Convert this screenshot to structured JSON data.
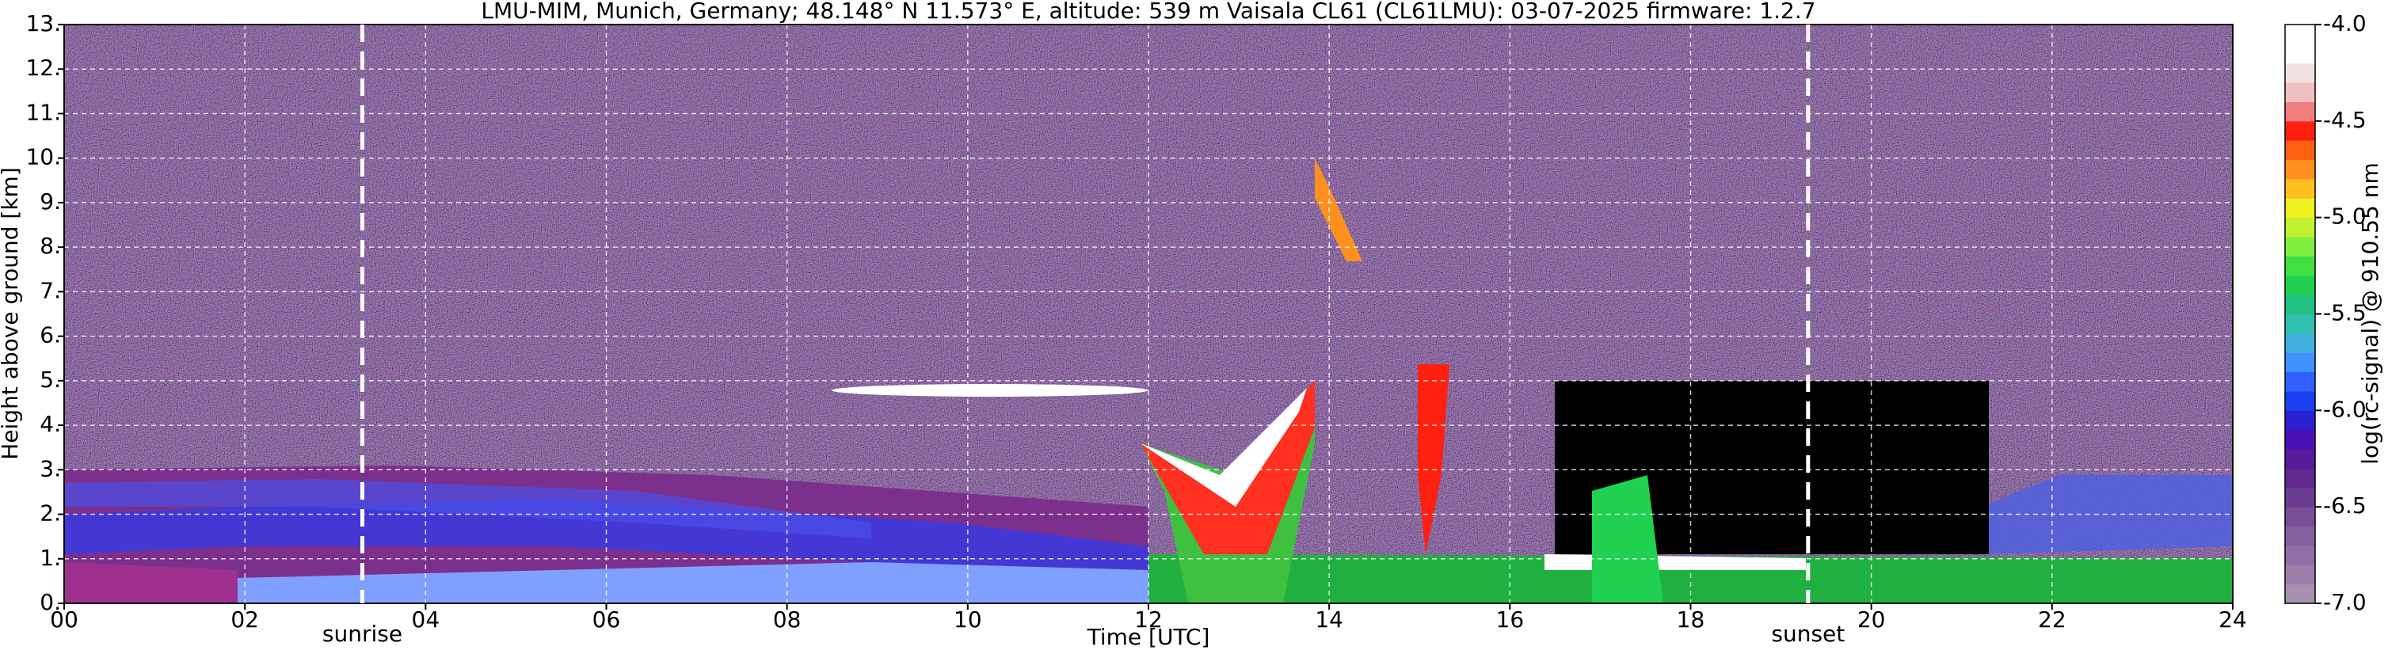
{
  "chart_data": {
    "type": "heatmap",
    "title": "LMU-MIM, Munich, Germany; 48.148° N 11.573° E, altitude: 539 m    Vaisala CL61 (CL61LMU): 03-07-2025    firmware: 1.2.7",
    "x_label": "Time [UTC]",
    "y_label": "Height above ground [km]",
    "xlim": [
      0,
      24
    ],
    "xticks": [
      {
        "value": 0,
        "label": "00"
      },
      {
        "value": 2,
        "label": "02"
      },
      {
        "value": 4,
        "label": "04"
      },
      {
        "value": 6,
        "label": "06"
      },
      {
        "value": 8,
        "label": "08"
      },
      10,
      12,
      14,
      16,
      18,
      20,
      22,
      24
    ],
    "ylim": [
      0,
      13
    ],
    "yticks": [
      {
        "value": 0,
        "label": "0."
      },
      {
        "value": 1,
        "label": "1."
      },
      {
        "value": 2,
        "label": "2."
      },
      {
        "value": 3,
        "label": "3."
      },
      {
        "value": 4,
        "label": "4."
      },
      {
        "value": 5,
        "label": "5."
      },
      {
        "value": 6,
        "label": "6."
      },
      {
        "value": 7,
        "label": "7."
      },
      {
        "value": 8,
        "label": "8."
      },
      {
        "value": 9,
        "label": "9."
      },
      {
        "value": 10,
        "label": "10."
      },
      {
        "value": 11,
        "label": "11."
      },
      {
        "value": 12,
        "label": "12."
      },
      {
        "value": 13,
        "label": "13."
      }
    ],
    "grid": true,
    "events": [
      {
        "label": "sunrise",
        "x": 3.3
      },
      {
        "label": "sunset",
        "x": 19.3
      }
    ],
    "colorbar": {
      "label": "log(rc-signal) @ 910.55 nm",
      "lim": [
        -7.0,
        -4.0
      ],
      "ticks": [
        {
          "value": -7,
          "label": "-7.0"
        },
        -6.5,
        {
          "value": -6,
          "label": "-6.0"
        },
        -5.5,
        {
          "value": -5,
          "label": "-5.0"
        },
        -4.5,
        {
          "value": -4,
          "label": "-4.0"
        }
      ],
      "colors": [
        "#a890b0",
        "#9c7eaa",
        "#9070a4",
        "#84609e",
        "#784e98",
        "#6c3c92",
        "#60288c",
        "#5a1a9c",
        "#4a10b4",
        "#2a20d0",
        "#1a40f0",
        "#3060ff",
        "#4090ff",
        "#40b0e0",
        "#30c0b0",
        "#20c080",
        "#20d050",
        "#40e040",
        "#80f040",
        "#c0f030",
        "#f0f020",
        "#ffc020",
        "#ff9020",
        "#ff6010",
        "#ff2010",
        "#f08080",
        "#f0c0c0",
        "#f0e0e0",
        "#ffffff",
        "#ffffff"
      ]
    }
  }
}
